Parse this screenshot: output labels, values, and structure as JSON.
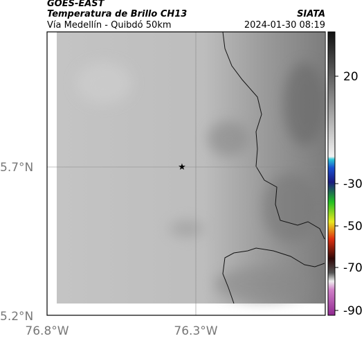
{
  "header": {
    "source": "GOES-EAST",
    "title": "Temperatura de Brillo CH13",
    "subtitle": "Vía Medellín - Quibdó 50km",
    "org": "SIATA",
    "datetime": "2024-01-30 08:19"
  },
  "lat_labels": [
    "5.7°N",
    "5.2°N"
  ],
  "lon_labels": [
    "76.8°W",
    "76.3°W"
  ],
  "colorbar": {
    "ticks": [
      20,
      -30,
      -50,
      -70,
      -90
    ]
  }
}
